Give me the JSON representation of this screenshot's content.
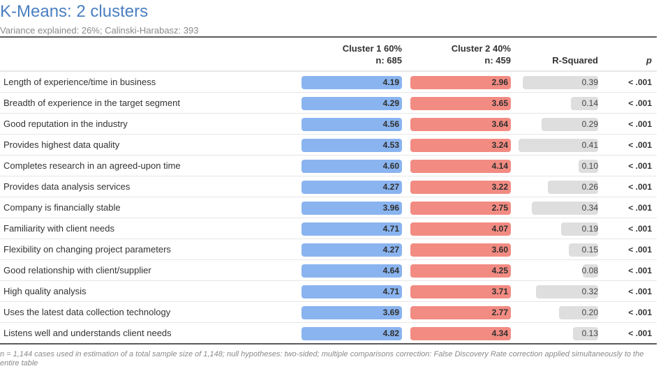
{
  "title": "K-Means: 2 clusters",
  "subtitle": "Variance explained: 26%; Calinski-Harabasz: 393",
  "headers": {
    "cluster1_name": "Cluster 1 60%",
    "cluster1_n": "n: 685",
    "cluster2_name": "Cluster 2 40%",
    "cluster2_n": "n: 459",
    "rsquared": "R-Squared",
    "p": "p"
  },
  "colors": {
    "title": "#4a7fc1",
    "cluster1": "#8ab4ef",
    "cluster2": "#f28b82",
    "rsquared_bar": "#dedede"
  },
  "chart_data": {
    "type": "table",
    "columns": [
      "Cluster 1 60% n: 685",
      "Cluster 2 40% n: 459",
      "R-Squared",
      "p"
    ],
    "rows": [
      {
        "label": "Length of experience/time in business",
        "c1": "4.19",
        "c2": "2.96",
        "r2": "0.39",
        "r2_value": 0.39,
        "p": "< .001"
      },
      {
        "label": "Breadth of experience in the target segment",
        "c1": "4.29",
        "c2": "3.65",
        "r2": "0.14",
        "r2_value": 0.14,
        "p": "< .001"
      },
      {
        "label": "Good reputation in the industry",
        "c1": "4.56",
        "c2": "3.64",
        "r2": "0.29",
        "r2_value": 0.29,
        "p": "< .001"
      },
      {
        "label": "Provides highest data quality",
        "c1": "4.53",
        "c2": "3.24",
        "r2": "0.41",
        "r2_value": 0.41,
        "p": "< .001"
      },
      {
        "label": "Completes research in an agreed-upon time",
        "c1": "4.60",
        "c2": "4.14",
        "r2": "0.10",
        "r2_value": 0.1,
        "p": "< .001"
      },
      {
        "label": "Provides data analysis services",
        "c1": "4.27",
        "c2": "3.22",
        "r2": "0.26",
        "r2_value": 0.26,
        "p": "< .001"
      },
      {
        "label": "Company is financially stable",
        "c1": "3.96",
        "c2": "2.75",
        "r2": "0.34",
        "r2_value": 0.34,
        "p": "< .001"
      },
      {
        "label": "Familiarity with client needs",
        "c1": "4.71",
        "c2": "4.07",
        "r2": "0.19",
        "r2_value": 0.19,
        "p": "< .001"
      },
      {
        "label": "Flexibility on changing project parameters",
        "c1": "4.27",
        "c2": "3.60",
        "r2": "0.15",
        "r2_value": 0.15,
        "p": "< .001"
      },
      {
        "label": "Good relationship with client/supplier",
        "c1": "4.64",
        "c2": "4.25",
        "r2": "0.08",
        "r2_value": 0.08,
        "p": "< .001"
      },
      {
        "label": "High quality analysis",
        "c1": "4.71",
        "c2": "3.71",
        "r2": "0.32",
        "r2_value": 0.32,
        "p": "< .001"
      },
      {
        "label": "Uses the latest data collection technology",
        "c1": "3.69",
        "c2": "2.77",
        "r2": "0.20",
        "r2_value": 0.2,
        "p": "< .001"
      },
      {
        "label": "Listens well and understands client needs",
        "c1": "4.82",
        "c2": "4.34",
        "r2": "0.13",
        "r2_value": 0.13,
        "p": "< .001"
      }
    ]
  },
  "footnote": "n = 1,144 cases used in estimation of a total sample size of 1,148; null hypotheses: two-sided; multiple comparisons correction: False Discovery Rate correction applied simultaneously to the entire table"
}
